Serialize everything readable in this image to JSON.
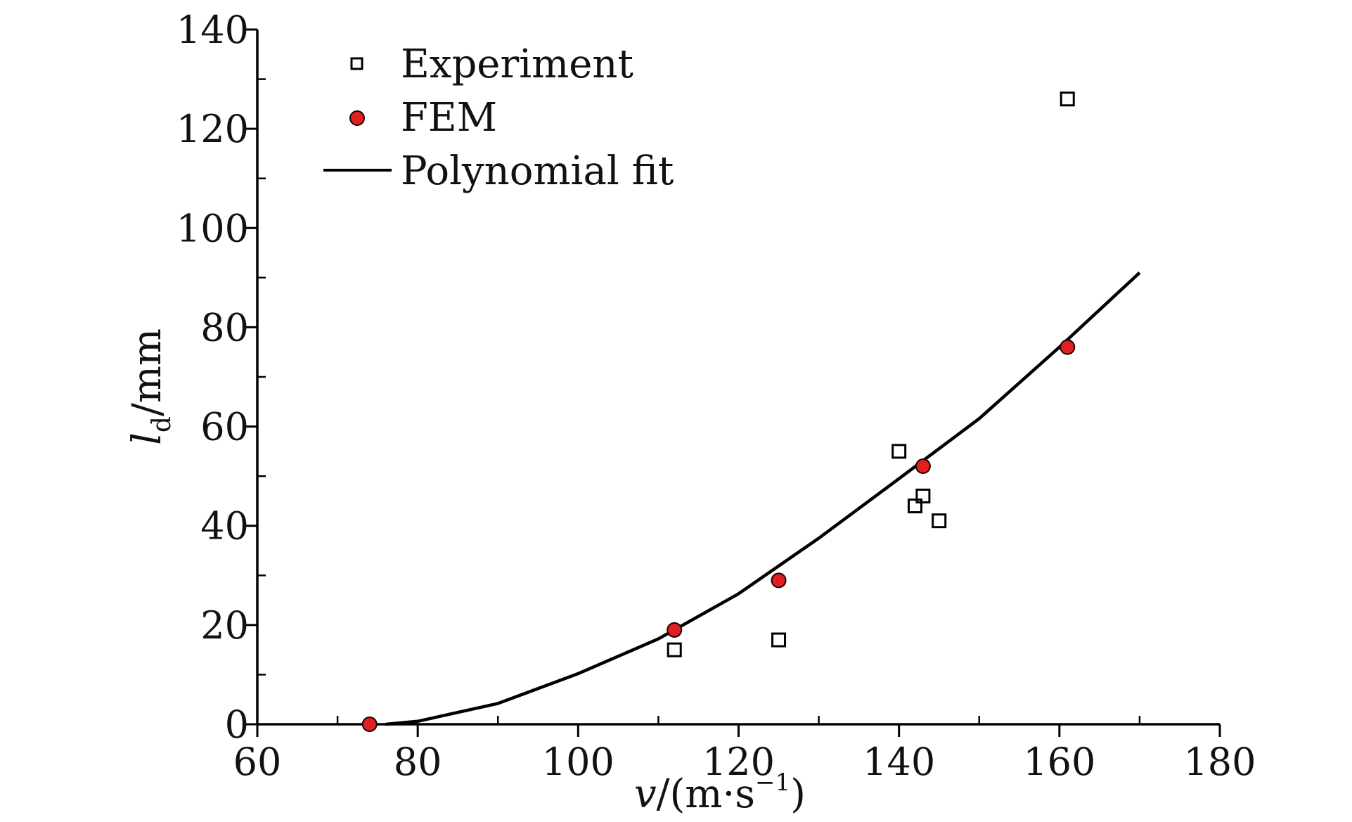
{
  "chart_data": {
    "type": "scatter",
    "title": "",
    "xlabel": {
      "var": "v",
      "rest": "/(m·s",
      "sup": "−1",
      "end": ")"
    },
    "ylabel": {
      "var": "l",
      "sub": "d",
      "rest": "/mm"
    },
    "xlim": [
      60,
      180
    ],
    "ylim": [
      0,
      140
    ],
    "x_ticks": [
      60,
      80,
      100,
      120,
      140,
      160,
      180
    ],
    "y_ticks": [
      0,
      20,
      40,
      60,
      80,
      100,
      120,
      140
    ],
    "x_tick_labels": [
      "60",
      "80",
      "100",
      "120",
      "140",
      "160",
      "180"
    ],
    "y_tick_labels": [
      "0",
      "20",
      "40",
      "60",
      "80",
      "100",
      "120",
      "140"
    ],
    "grid": false,
    "legend_position": "top-left",
    "series": [
      {
        "name": "Experiment",
        "kind": "scatter",
        "marker": "open-square",
        "color": "#000000",
        "points": [
          {
            "x": 112,
            "y": 15
          },
          {
            "x": 125,
            "y": 17
          },
          {
            "x": 140,
            "y": 55
          },
          {
            "x": 142,
            "y": 44
          },
          {
            "x": 143,
            "y": 46
          },
          {
            "x": 145,
            "y": 41
          },
          {
            "x": 161,
            "y": 126
          }
        ]
      },
      {
        "name": "FEM",
        "kind": "scatter",
        "marker": "filled-circle",
        "color": "#e02020",
        "points": [
          {
            "x": 74,
            "y": 0
          },
          {
            "x": 112,
            "y": 19
          },
          {
            "x": 125,
            "y": 29
          },
          {
            "x": 143,
            "y": 52
          },
          {
            "x": 161,
            "y": 76
          }
        ]
      },
      {
        "name": "Polynomial fit",
        "kind": "line",
        "color": "#000000",
        "points": [
          {
            "x": 76,
            "y": 0
          },
          {
            "x": 80,
            "y": 0.6
          },
          {
            "x": 90,
            "y": 4.2
          },
          {
            "x": 100,
            "y": 10.2
          },
          {
            "x": 110,
            "y": 17.2
          },
          {
            "x": 120,
            "y": 26.3
          },
          {
            "x": 130,
            "y": 37.5
          },
          {
            "x": 140,
            "y": 49.5
          },
          {
            "x": 150,
            "y": 61.6
          },
          {
            "x": 160,
            "y": 76.0
          },
          {
            "x": 170,
            "y": 91.0
          }
        ]
      }
    ]
  }
}
